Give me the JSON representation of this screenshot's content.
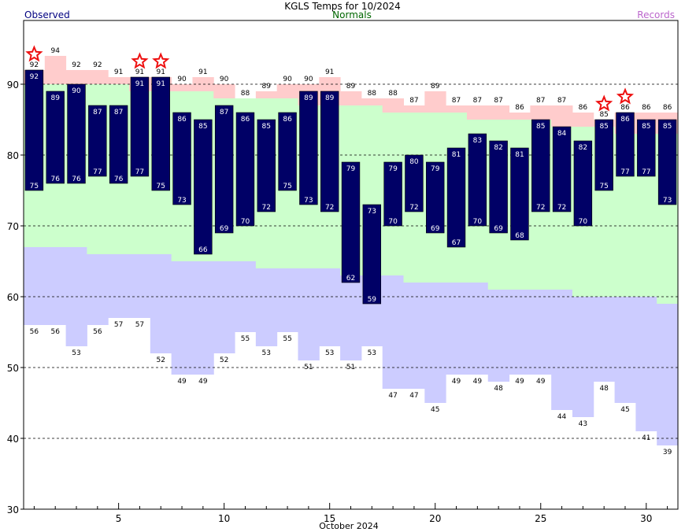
{
  "header": {
    "title": "KGLS Temps for 10/2024",
    "observed_label": "Observed",
    "normals_label": "Normals",
    "records_label": "Records"
  },
  "colors": {
    "observed_bar": "#000066",
    "record_band": "#ffcccc",
    "normal_band": "#ccffcc",
    "low_band": "#ccccff",
    "star": "#ee1111",
    "observed_text": "#000080",
    "normals_text": "#006600",
    "records_text": "#bb66cc"
  },
  "chart_data": {
    "type": "bar",
    "title": "KGLS Temps for 10/2024",
    "xlabel": "October 2024",
    "ylabel": "",
    "ylim": [
      30,
      99
    ],
    "yticks": [
      30,
      40,
      50,
      60,
      70,
      80,
      90
    ],
    "xticks": [
      5,
      10,
      15,
      20,
      25,
      30
    ],
    "grid": "dashed horizontal at 40, 50, 60, 70, 80, 90",
    "days": [
      1,
      2,
      3,
      4,
      5,
      6,
      7,
      8,
      9,
      10,
      11,
      12,
      13,
      14,
      15,
      16,
      17,
      18,
      19,
      20,
      21,
      22,
      23,
      24,
      25,
      26,
      27,
      28,
      29,
      30,
      31
    ],
    "observed_high": [
      92,
      89,
      90,
      87,
      87,
      91,
      91,
      86,
      85,
      87,
      86,
      85,
      86,
      89,
      89,
      79,
      73,
      79,
      80,
      79,
      81,
      83,
      82,
      81,
      85,
      84,
      82,
      85,
      86,
      85,
      85
    ],
    "observed_low": [
      75,
      76,
      76,
      77,
      76,
      77,
      75,
      73,
      66,
      69,
      70,
      72,
      75,
      73,
      72,
      62,
      59,
      70,
      72,
      69,
      67,
      70,
      69,
      68,
      72,
      72,
      70,
      75,
      77,
      77,
      73
    ],
    "record_high": [
      92,
      94,
      92,
      92,
      91,
      91,
      91,
      90,
      91,
      90,
      88,
      89,
      90,
      90,
      91,
      89,
      88,
      88,
      87,
      89,
      87,
      87,
      87,
      86,
      87,
      87,
      86,
      85,
      86,
      86,
      86
    ],
    "record_low": [
      56,
      56,
      53,
      56,
      57,
      57,
      52,
      49,
      49,
      52,
      55,
      53,
      55,
      51,
      53,
      51,
      53,
      47,
      47,
      45,
      49,
      49,
      48,
      49,
      49,
      44,
      43,
      48,
      45,
      41,
      39
    ],
    "normal_high": [
      90,
      90,
      90,
      90,
      90,
      89,
      89,
      89,
      89,
      88,
      88,
      88,
      88,
      87,
      87,
      87,
      87,
      86,
      86,
      86,
      86,
      85,
      85,
      85,
      85,
      84,
      84,
      84,
      83,
      83,
      83
    ],
    "normal_low": [
      67,
      67,
      67,
      66,
      66,
      66,
      66,
      65,
      65,
      65,
      65,
      64,
      64,
      64,
      64,
      63,
      63,
      63,
      62,
      62,
      62,
      62,
      61,
      61,
      61,
      61,
      60,
      60,
      60,
      60,
      59
    ],
    "record_set_days": [
      1,
      6,
      7,
      28,
      29
    ]
  }
}
